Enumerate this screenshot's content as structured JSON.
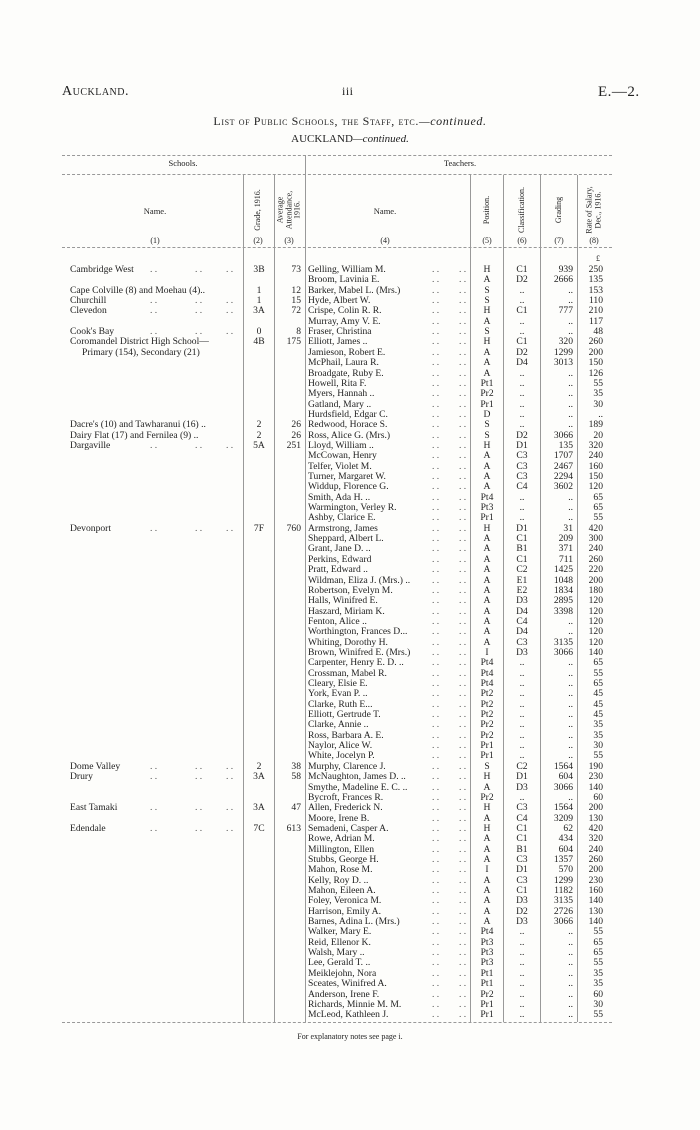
{
  "header": {
    "left": "Auckland.",
    "center": "iii",
    "right": "E.—2."
  },
  "title": "List of Public Schools, the Staff, etc.",
  "title_suffix": "—continued.",
  "subtitle": "AUCKLAND",
  "subtitle_suffix": "—continued.",
  "groups": {
    "schools": "Schools.",
    "teachers": "Teachers."
  },
  "columns": [
    {
      "label": "Name.",
      "num": "(1)"
    },
    {
      "label": "Grade, 1916.",
      "num": "(2)"
    },
    {
      "label": "Average Attendance, 1916.",
      "num": "(3)"
    },
    {
      "label": "Name.",
      "num": "(4)"
    },
    {
      "label": "Position.",
      "num": "(5)"
    },
    {
      "label": "Classification.",
      "num": "(6)"
    },
    {
      "label": "Grading",
      "num": "(7)"
    },
    {
      "label": "Rate of Salary, Dec., 1916.",
      "num": "(8)"
    }
  ],
  "currency": "£",
  "rows": [
    {
      "school": "Cambridge West",
      "grade": "3B",
      "att": "73",
      "teacher": "Gelling, William M.",
      "pos": "H",
      "cls": "C1",
      "grading": "939",
      "salary": "250"
    },
    {
      "school": "",
      "grade": "",
      "att": "",
      "teacher": "Broom, Lavinia E.",
      "pos": "A",
      "cls": "D2",
      "grading": "2666",
      "salary": "135"
    },
    {
      "school": "Cape Colville (8) and Moehau (4)..",
      "grade": "1",
      "att": "12",
      "teacher": "Barker, Mabel L. (Mrs.)",
      "pos": "S",
      "cls": "..",
      "grading": "..",
      "salary": "153"
    },
    {
      "school": "Churchill",
      "grade": "1",
      "att": "15",
      "teacher": "Hyde, Albert W.",
      "pos": "S",
      "cls": "..",
      "grading": "..",
      "salary": "110"
    },
    {
      "school": "Clevedon",
      "grade": "3A",
      "att": "72",
      "teacher": "Crispe, Colin R. R.",
      "pos": "H",
      "cls": "C1",
      "grading": "777",
      "salary": "210"
    },
    {
      "school": "",
      "grade": "",
      "att": "",
      "teacher": "Murray, Amy V. E.",
      "pos": "A",
      "cls": "..",
      "grading": "..",
      "salary": "117"
    },
    {
      "school": "Cook's Bay",
      "grade": "0",
      "att": "8",
      "teacher": "Fraser, Christina",
      "pos": "S",
      "cls": "..",
      "grading": "..",
      "salary": "48"
    },
    {
      "school": "Coromandel District High School—",
      "grade": "4B",
      "att": "175",
      "teacher": "Elliott, James ..",
      "pos": "H",
      "cls": "C1",
      "grading": "320",
      "salary": "260"
    },
    {
      "school": "Primary (154), Secondary (21)",
      "indent": true,
      "grade": "",
      "att": "",
      "teacher": "Jamieson, Robert E.",
      "pos": "A",
      "cls": "D2",
      "grading": "1299",
      "salary": "200"
    },
    {
      "school": "",
      "grade": "",
      "att": "",
      "teacher": "McPhail, Laura R.",
      "pos": "A",
      "cls": "D4",
      "grading": "3013",
      "salary": "150"
    },
    {
      "school": "",
      "grade": "",
      "att": "",
      "teacher": "Broadgate, Ruby E.",
      "pos": "A",
      "cls": "..",
      "grading": "..",
      "salary": "126"
    },
    {
      "school": "",
      "grade": "",
      "att": "",
      "teacher": "Howell, Rita F.",
      "pos": "Pt1",
      "cls": "..",
      "grading": "..",
      "salary": "55"
    },
    {
      "school": "",
      "grade": "",
      "att": "",
      "teacher": "Myers, Hannah ..",
      "pos": "Pr2",
      "cls": "..",
      "grading": "..",
      "salary": "35"
    },
    {
      "school": "",
      "grade": "",
      "att": "",
      "teacher": "Gatland, Mary ..",
      "pos": "Pr1",
      "cls": "..",
      "grading": "..",
      "salary": "30"
    },
    {
      "school": "",
      "grade": "",
      "att": "",
      "teacher": "Hurdsfield, Edgar C.",
      "pos": "D",
      "cls": "..",
      "grading": "..",
      "salary": ".."
    },
    {
      "school": "Dacre's (10) and Tawharanui (16) ..",
      "grade": "2",
      "att": "26",
      "teacher": "Redwood, Horace S.",
      "pos": "S",
      "cls": "..",
      "grading": "..",
      "salary": "189"
    },
    {
      "school": "Dairy Flat (17) and Fernilea (9) ..",
      "grade": "2",
      "att": "26",
      "teacher": "Ross, Alice G. (Mrs.)",
      "pos": "S",
      "cls": "D2",
      "grading": "3066",
      "salary": "20"
    },
    {
      "school": "Dargaville",
      "grade": "5A",
      "att": "251",
      "teacher": "Lloyd, William ..",
      "pos": "H",
      "cls": "D1",
      "grading": "135",
      "salary": "320"
    },
    {
      "school": "",
      "grade": "",
      "att": "",
      "teacher": "McCowan, Henry",
      "pos": "A",
      "cls": "C3",
      "grading": "1707",
      "salary": "240"
    },
    {
      "school": "",
      "grade": "",
      "att": "",
      "teacher": "Telfer, Violet M.",
      "pos": "A",
      "cls": "C3",
      "grading": "2467",
      "salary": "160"
    },
    {
      "school": "",
      "grade": "",
      "att": "",
      "teacher": "Turner, Margaret W.",
      "pos": "A",
      "cls": "C3",
      "grading": "2294",
      "salary": "150"
    },
    {
      "school": "",
      "grade": "",
      "att": "",
      "teacher": "Widdup, Florence G.",
      "pos": "A",
      "cls": "C4",
      "grading": "3602",
      "salary": "120"
    },
    {
      "school": "",
      "grade": "",
      "att": "",
      "teacher": "Smith, Ada H. ..",
      "pos": "Pt4",
      "cls": "..",
      "grading": "..",
      "salary": "65"
    },
    {
      "school": "",
      "grade": "",
      "att": "",
      "teacher": "Warmington, Verley R.",
      "pos": "Pt3",
      "cls": "..",
      "grading": "..",
      "salary": "65"
    },
    {
      "school": "",
      "grade": "",
      "att": "",
      "teacher": "Ashby, Clarice E.",
      "pos": "Pr1",
      "cls": "..",
      "grading": "..",
      "salary": "55"
    },
    {
      "school": "Devonport",
      "grade": "7F",
      "att": "760",
      "teacher": "Armstrong, James",
      "pos": "H",
      "cls": "D1",
      "grading": "31",
      "salary": "420"
    },
    {
      "school": "",
      "grade": "",
      "att": "",
      "teacher": "Sheppard, Albert L.",
      "pos": "A",
      "cls": "C1",
      "grading": "209",
      "salary": "300"
    },
    {
      "school": "",
      "grade": "",
      "att": "",
      "teacher": "Grant, Jane D. ..",
      "pos": "A",
      "cls": "B1",
      "grading": "371",
      "salary": "240"
    },
    {
      "school": "",
      "grade": "",
      "att": "",
      "teacher": "Perkins, Edward",
      "pos": "A",
      "cls": "C1",
      "grading": "711",
      "salary": "260"
    },
    {
      "school": "",
      "grade": "",
      "att": "",
      "teacher": "Pratt, Edward ..",
      "pos": "A",
      "cls": "C2",
      "grading": "1425",
      "salary": "220"
    },
    {
      "school": "",
      "grade": "",
      "att": "",
      "teacher": "Wildman, Eliza J. (Mrs.) ..",
      "pos": "A",
      "cls": "E1",
      "grading": "1048",
      "salary": "200"
    },
    {
      "school": "",
      "grade": "",
      "att": "",
      "teacher": "Robertson, Evelyn M.",
      "pos": "A",
      "cls": "E2",
      "grading": "1834",
      "salary": "180"
    },
    {
      "school": "",
      "grade": "",
      "att": "",
      "teacher": "Halls, Winifred E.",
      "pos": "A",
      "cls": "D3",
      "grading": "2895",
      "salary": "120"
    },
    {
      "school": "",
      "grade": "",
      "att": "",
      "teacher": "Haszard, Miriam K.",
      "pos": "A",
      "cls": "D4",
      "grading": "3398",
      "salary": "120"
    },
    {
      "school": "",
      "grade": "",
      "att": "",
      "teacher": "Fenton, Alice ..",
      "pos": "A",
      "cls": "C4",
      "grading": "..",
      "salary": "120"
    },
    {
      "school": "",
      "grade": "",
      "att": "",
      "teacher": "Worthington, Frances D...",
      "pos": "A",
      "cls": "D4",
      "grading": "..",
      "salary": "120"
    },
    {
      "school": "",
      "grade": "",
      "att": "",
      "teacher": "Whiting, Dorothy H.",
      "pos": "A",
      "cls": "C3",
      "grading": "3135",
      "salary": "120"
    },
    {
      "school": "",
      "grade": "",
      "att": "",
      "teacher": "Brown, Winifred E. (Mrs.)",
      "pos": "I",
      "cls": "D3",
      "grading": "3066",
      "salary": "140"
    },
    {
      "school": "",
      "grade": "",
      "att": "",
      "teacher": "Carpenter, Henry E. D. ..",
      "pos": "Pt4",
      "cls": "..",
      "grading": "..",
      "salary": "65"
    },
    {
      "school": "",
      "grade": "",
      "att": "",
      "teacher": "Crossman, Mabel R.",
      "pos": "Pt4",
      "cls": "..",
      "grading": "..",
      "salary": "55"
    },
    {
      "school": "",
      "grade": "",
      "att": "",
      "teacher": "Cleary, Elsie E.",
      "pos": "Pt4",
      "cls": "..",
      "grading": "..",
      "salary": "65"
    },
    {
      "school": "",
      "grade": "",
      "att": "",
      "teacher": "York, Evan P. ..",
      "pos": "Pt2",
      "cls": "..",
      "grading": "..",
      "salary": "45"
    },
    {
      "school": "",
      "grade": "",
      "att": "",
      "teacher": "Clarke, Ruth E...",
      "pos": "Pt2",
      "cls": "..",
      "grading": "..",
      "salary": "45"
    },
    {
      "school": "",
      "grade": "",
      "att": "",
      "teacher": "Elliott, Gertrude T.",
      "pos": "Pt2",
      "cls": "..",
      "grading": "..",
      "salary": "45"
    },
    {
      "school": "",
      "grade": "",
      "att": "",
      "teacher": "Clarke, Annie ..",
      "pos": "Pr2",
      "cls": "..",
      "grading": "..",
      "salary": "35"
    },
    {
      "school": "",
      "grade": "",
      "att": "",
      "teacher": "Ross, Barbara A. E.",
      "pos": "Pr2",
      "cls": "..",
      "grading": "..",
      "salary": "35"
    },
    {
      "school": "",
      "grade": "",
      "att": "",
      "teacher": "Naylor, Alice W.",
      "pos": "Pr1",
      "cls": "..",
      "grading": "..",
      "salary": "30"
    },
    {
      "school": "",
      "grade": "",
      "att": "",
      "teacher": "White, Jocelyn P.",
      "pos": "Pr1",
      "cls": "..",
      "grading": "..",
      "salary": "55"
    },
    {
      "school": "Dome Valley",
      "grade": "2",
      "att": "38",
      "teacher": "Murphy, Clarence J.",
      "pos": "S",
      "cls": "C2",
      "grading": "1564",
      "salary": "190"
    },
    {
      "school": "Drury",
      "grade": "3A",
      "att": "58",
      "teacher": "McNaughton, James D. ..",
      "pos": "H",
      "cls": "D1",
      "grading": "604",
      "salary": "230"
    },
    {
      "school": "",
      "grade": "",
      "att": "",
      "teacher": "Smythe, Madeline E. C. ..",
      "pos": "A",
      "cls": "D3",
      "grading": "3066",
      "salary": "140"
    },
    {
      "school": "",
      "grade": "",
      "att": "",
      "teacher": "Bycroft, Frances R.",
      "pos": "Pr2",
      "cls": "..",
      "grading": "..",
      "salary": "60"
    },
    {
      "school": "East Tamaki",
      "grade": "3A",
      "att": "47",
      "teacher": "Allen, Frederick N.",
      "pos": "H",
      "cls": "C3",
      "grading": "1564",
      "salary": "200"
    },
    {
      "school": "",
      "grade": "",
      "att": "",
      "teacher": "Moore, Irene B.",
      "pos": "A",
      "cls": "C4",
      "grading": "3209",
      "salary": "130"
    },
    {
      "school": "Edendale",
      "grade": "7C",
      "att": "613",
      "teacher": "Semadeni, Casper A.",
      "pos": "H",
      "cls": "C1",
      "grading": "62",
      "salary": "420"
    },
    {
      "school": "",
      "grade": "",
      "att": "",
      "teacher": "Rowe, Adrian M.",
      "pos": "A",
      "cls": "C1",
      "grading": "434",
      "salary": "320"
    },
    {
      "school": "",
      "grade": "",
      "att": "",
      "teacher": "Millington, Ellen",
      "pos": "A",
      "cls": "B1",
      "grading": "604",
      "salary": "240"
    },
    {
      "school": "",
      "grade": "",
      "att": "",
      "teacher": "Stubbs, George H.",
      "pos": "A",
      "cls": "C3",
      "grading": "1357",
      "salary": "260"
    },
    {
      "school": "",
      "grade": "",
      "att": "",
      "teacher": "Mahon, Rose M.",
      "pos": "I",
      "cls": "D1",
      "grading": "570",
      "salary": "200"
    },
    {
      "school": "",
      "grade": "",
      "att": "",
      "teacher": "Kelly, Roy D. ..",
      "pos": "A",
      "cls": "C3",
      "grading": "1299",
      "salary": "230"
    },
    {
      "school": "",
      "grade": "",
      "att": "",
      "teacher": "Mahon, Eileen A.",
      "pos": "A",
      "cls": "C1",
      "grading": "1182",
      "salary": "160"
    },
    {
      "school": "",
      "grade": "",
      "att": "",
      "teacher": "Foley, Veronica M.",
      "pos": "A",
      "cls": "D3",
      "grading": "3135",
      "salary": "140"
    },
    {
      "school": "",
      "grade": "",
      "att": "",
      "teacher": "Harrison, Emily A.",
      "pos": "A",
      "cls": "D2",
      "grading": "2726",
      "salary": "130"
    },
    {
      "school": "",
      "grade": "",
      "att": "",
      "teacher": "Barnes, Adina L. (Mrs.)",
      "pos": "A",
      "cls": "D3",
      "grading": "3066",
      "salary": "140"
    },
    {
      "school": "",
      "grade": "",
      "att": "",
      "teacher": "Walker, Mary E.",
      "pos": "Pt4",
      "cls": "..",
      "grading": "..",
      "salary": "55"
    },
    {
      "school": "",
      "grade": "",
      "att": "",
      "teacher": "Reid, Ellenor K.",
      "pos": "Pt3",
      "cls": "..",
      "grading": "..",
      "salary": "65"
    },
    {
      "school": "",
      "grade": "",
      "att": "",
      "teacher": "Walsh, Mary ..",
      "pos": "Pt3",
      "cls": "..",
      "grading": "..",
      "salary": "65"
    },
    {
      "school": "",
      "grade": "",
      "att": "",
      "teacher": "Lee, Gerald T. ..",
      "pos": "Pt3",
      "cls": "..",
      "grading": "..",
      "salary": "55"
    },
    {
      "school": "",
      "grade": "",
      "att": "",
      "teacher": "Meiklejohn, Nora",
      "pos": "Pt1",
      "cls": "..",
      "grading": "..",
      "salary": "35"
    },
    {
      "school": "",
      "grade": "",
      "att": "",
      "teacher": "Sceates, Winifred A.",
      "pos": "Pt1",
      "cls": "..",
      "grading": "..",
      "salary": "35"
    },
    {
      "school": "",
      "grade": "",
      "att": "",
      "teacher": "Anderson, Irene F.",
      "pos": "Pr2",
      "cls": "..",
      "grading": "..",
      "salary": "60"
    },
    {
      "school": "",
      "grade": "",
      "att": "",
      "teacher": "Richards, Minnie M. M.",
      "pos": "Pr1",
      "cls": "..",
      "grading": "..",
      "salary": "30"
    },
    {
      "school": "",
      "grade": "",
      "att": "",
      "teacher": "McLeod, Kathleen J.",
      "pos": "Pr1",
      "cls": "..",
      "grading": "..",
      "salary": "55"
    }
  ],
  "footnote": "For explanatory notes see page i."
}
